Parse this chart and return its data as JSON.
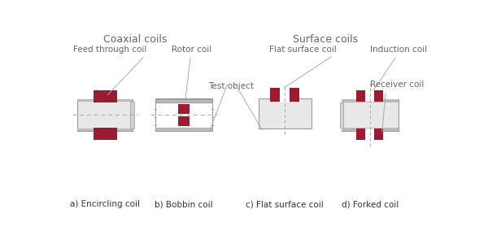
{
  "bg_color": "#ffffff",
  "coil_color": "#9b1b30",
  "tube_color": "#e8e8e8",
  "tube_edge_color": "#999999",
  "tube_top_bar_color": "#bbbbbb",
  "dashed_color": "#aaaaaa",
  "text_color": "#666666",
  "label_color": "#333333",
  "section_title_color": "#666666",
  "coaxial_title": "Coaxial coils",
  "surface_title": "Surface coils",
  "labels": [
    "a) Encircling coil",
    "b) Bobbin coil",
    "c) Flat surface coil",
    "d) Forked coil"
  ],
  "coil_labels": [
    "Feed through coil",
    "Rotor coil",
    "Flat surface coil",
    "Induction coil"
  ],
  "receiver_label": "Receiver coil",
  "test_object_label": "Test object"
}
